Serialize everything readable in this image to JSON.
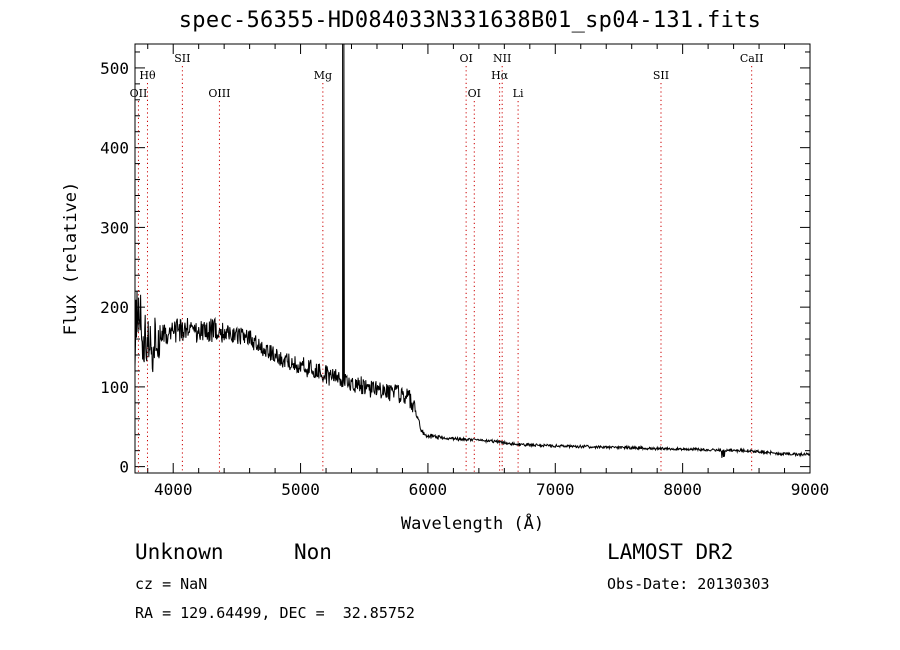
{
  "chart_data": {
    "type": "line",
    "title": "spec-56355-HD084033N331638B01_sp04-131.fits",
    "xlabel": "Wavelength (Å)",
    "ylabel": "Flux (relative)",
    "xlim": [
      3700,
      9000
    ],
    "ylim": [
      -8,
      530
    ],
    "x_ticks": [
      4000,
      5000,
      6000,
      7000,
      8000,
      9000
    ],
    "y_ticks": [
      0,
      100,
      200,
      300,
      400,
      500
    ],
    "grid": false,
    "series_color": "#000000",
    "line_color": "#cc0000",
    "spectrum_anchors": [
      [
        3700,
        160
      ],
      [
        3720,
        200
      ],
      [
        3750,
        170
      ],
      [
        3800,
        150
      ],
      [
        3850,
        155
      ],
      [
        3900,
        162
      ],
      [
        3950,
        165
      ],
      [
        4000,
        170
      ],
      [
        4100,
        170
      ],
      [
        4200,
        170
      ],
      [
        4300,
        172
      ],
      [
        4400,
        168
      ],
      [
        4500,
        165
      ],
      [
        4600,
        160
      ],
      [
        4700,
        150
      ],
      [
        4800,
        140
      ],
      [
        4900,
        132
      ],
      [
        5000,
        128
      ],
      [
        5100,
        122
      ],
      [
        5200,
        115
      ],
      [
        5300,
        110
      ],
      [
        5400,
        105
      ],
      [
        5500,
        100
      ],
      [
        5600,
        97
      ],
      [
        5700,
        93
      ],
      [
        5800,
        90
      ],
      [
        5850,
        88
      ],
      [
        5900,
        70
      ],
      [
        5950,
        45
      ],
      [
        6000,
        38
      ],
      [
        6200,
        35
      ],
      [
        6500,
        32
      ],
      [
        6700,
        28
      ],
      [
        7000,
        26
      ],
      [
        7500,
        24
      ],
      [
        8000,
        22
      ],
      [
        8500,
        20
      ],
      [
        8800,
        16
      ],
      [
        9000,
        15
      ]
    ],
    "spike": {
      "x": 5340,
      "y": 530
    },
    "lines": [
      {
        "label": "Hθ",
        "x": 3798,
        "row": 1
      },
      {
        "label": "OII",
        "x": 3727,
        "row": 2
      },
      {
        "label": "SII",
        "x": 4072,
        "row": 0
      },
      {
        "label": "OIII",
        "x": 4363,
        "row": 2
      },
      {
        "label": "Mg",
        "x": 5175,
        "row": 1
      },
      {
        "label": "OI",
        "x": 6300,
        "row": 0
      },
      {
        "label": "OI",
        "x": 6364,
        "row": 2
      },
      {
        "label": "NII",
        "x": 6583,
        "row": 0
      },
      {
        "label": "Hα",
        "x": 6563,
        "row": 1
      },
      {
        "label": "Li",
        "x": 6708,
        "row": 2
      },
      {
        "label": "SII",
        "x": 7830,
        "row": 1
      },
      {
        "label": "CaII",
        "x": 8542,
        "row": 0
      }
    ]
  },
  "footer": {
    "object_class": "Unknown",
    "subclass": "Non",
    "release": "LAMOST DR2",
    "cz": "cz = NaN",
    "obs_date": "Obs-Date: 20130303",
    "coords": "RA = 129.64499, DEC =  32.85752"
  }
}
